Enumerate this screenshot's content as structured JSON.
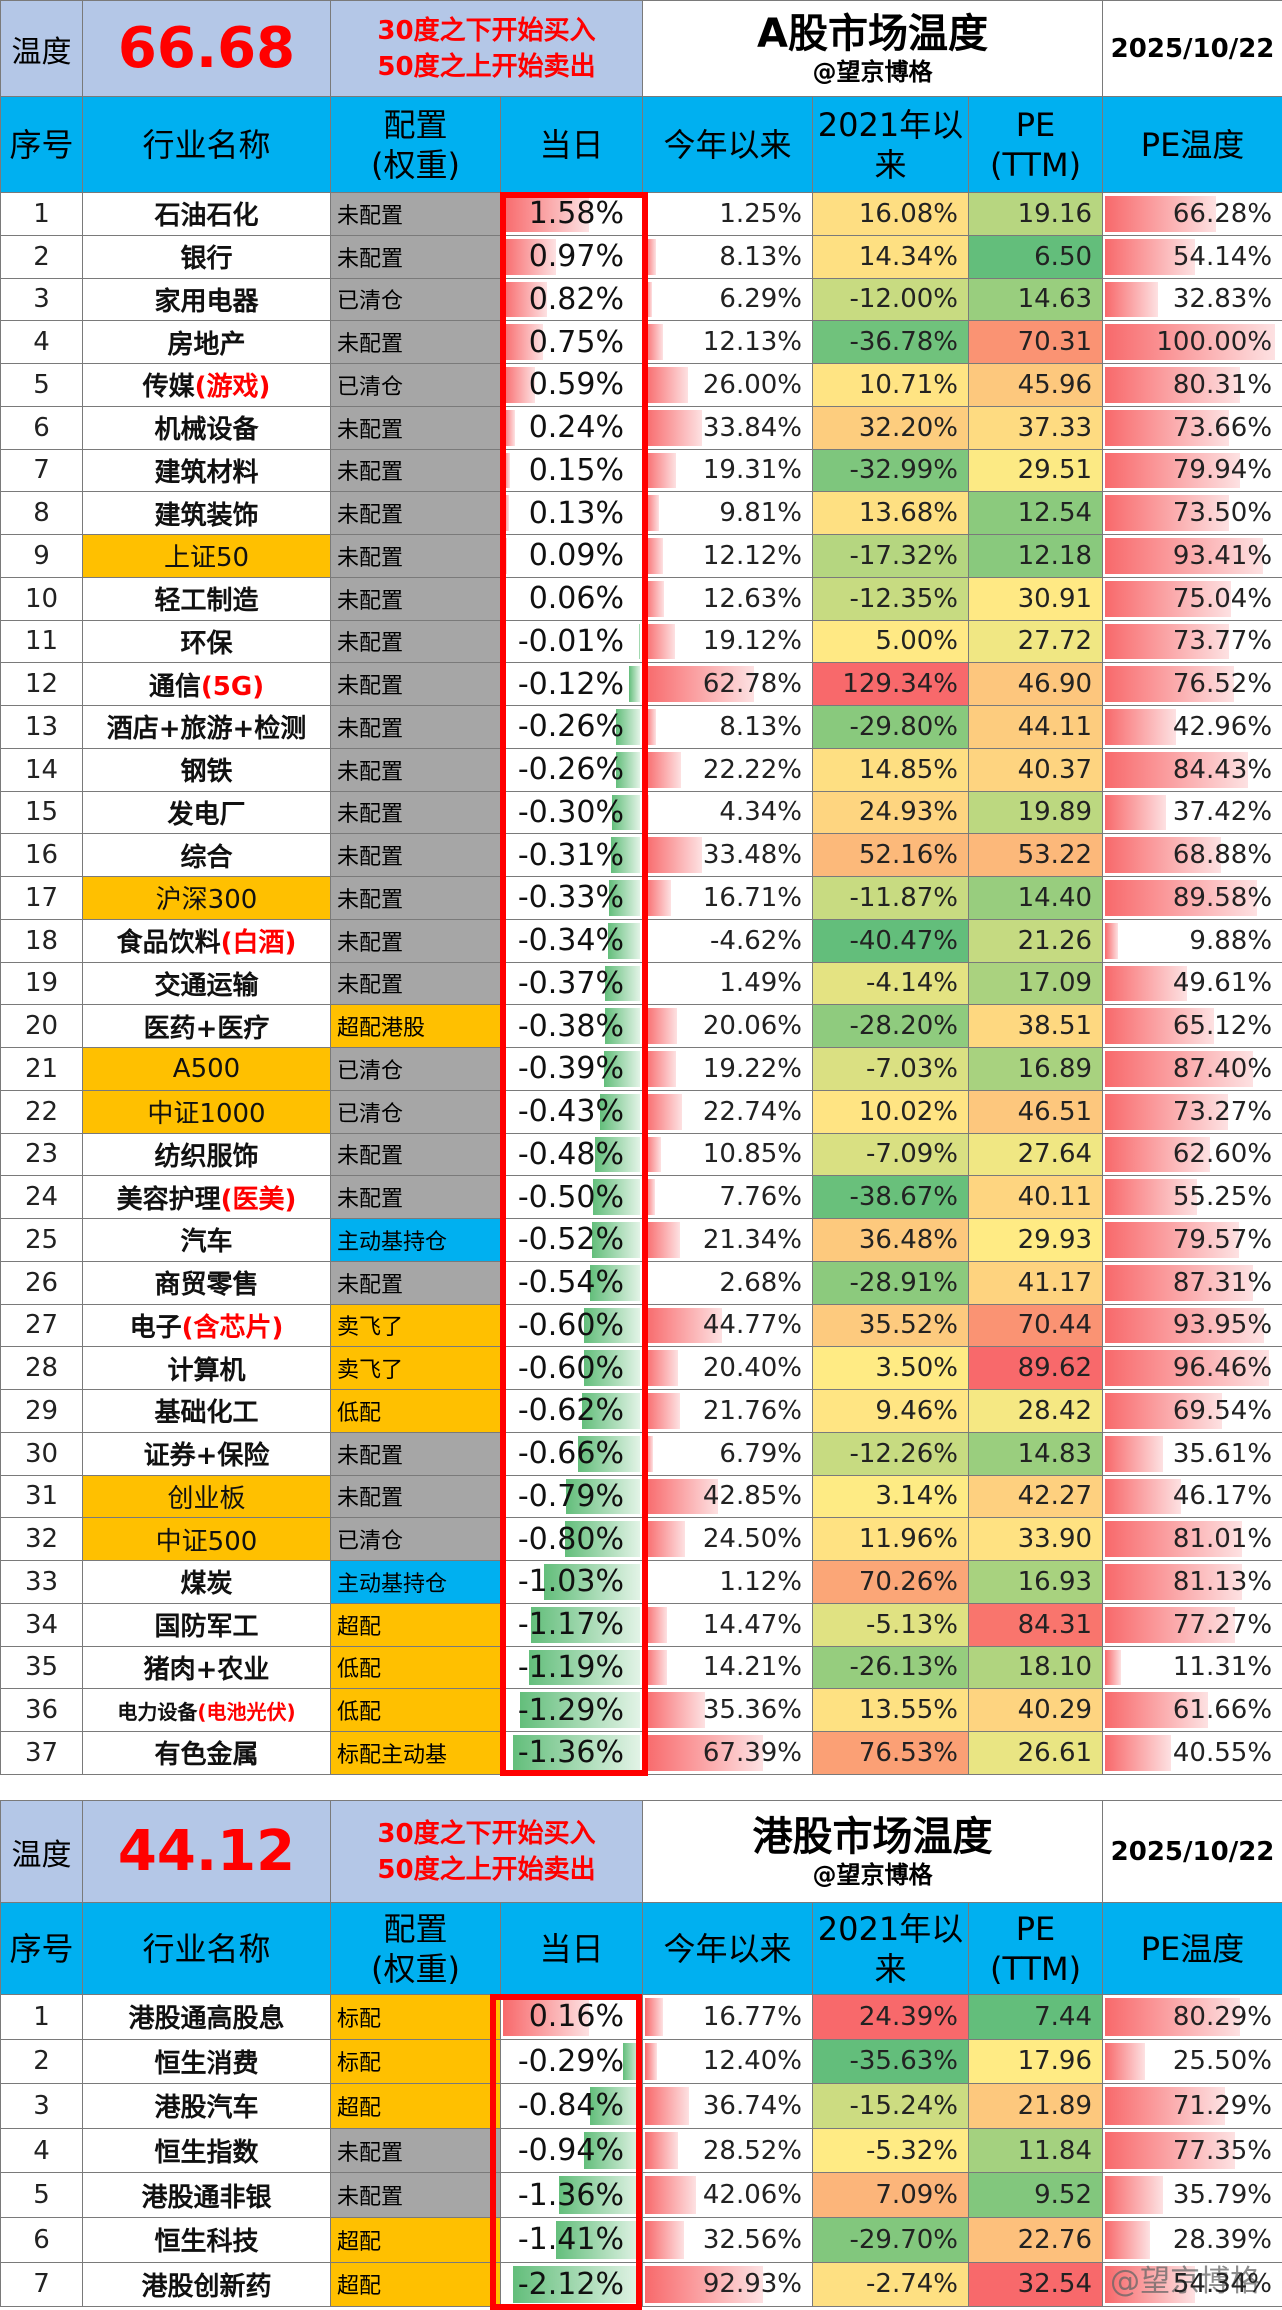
{
  "a_share": {
    "temp_label": "温度",
    "temp_value": "66.68",
    "rule_buy": "30度之下开始买入",
    "rule_sell": "50度之上开始卖出",
    "title": "A股市场温度",
    "subtitle": "@望京博格",
    "date": "2025/10/22",
    "columns": [
      "序号",
      "行业名称",
      "配置\n(权重)",
      "当日",
      "今年以来",
      "2021年以\n来",
      "PE\n(TTM)",
      "PE温度"
    ],
    "rows": [
      {
        "seq": "1",
        "name": "石油石化",
        "alloc": "未配置",
        "ac": "grey",
        "daily": "1.58%",
        "dv": 1.58,
        "ytd": "1.25%",
        "yv": 1.25,
        "since2021": "16.08%",
        "s21": 16.08,
        "pe": "19.16",
        "pev": 19.16,
        "pet": "66.28%",
        "ptv": 66.28
      },
      {
        "seq": "2",
        "name": "银行",
        "alloc": "未配置",
        "ac": "grey",
        "daily": "0.97%",
        "dv": 0.97,
        "ytd": "8.13%",
        "yv": 8.13,
        "since2021": "14.34%",
        "s21": 14.34,
        "pe": "6.50",
        "pev": 6.5,
        "pet": "54.14%",
        "ptv": 54.14
      },
      {
        "seq": "3",
        "name": "家用电器",
        "alloc": "已清仓",
        "ac": "grey",
        "daily": "0.82%",
        "dv": 0.82,
        "ytd": "6.29%",
        "yv": 6.29,
        "since2021": "-12.00%",
        "s21": -12.0,
        "pe": "14.63",
        "pev": 14.63,
        "pet": "32.83%",
        "ptv": 32.83
      },
      {
        "seq": "4",
        "name": "房地产",
        "alloc": "未配置",
        "ac": "grey",
        "daily": "0.75%",
        "dv": 0.75,
        "ytd": "12.13%",
        "yv": 12.13,
        "since2021": "-36.78%",
        "s21": -36.78,
        "pe": "70.31",
        "pev": 70.31,
        "pet": "100.00%",
        "ptv": 100.0
      },
      {
        "seq": "5",
        "name": "传媒",
        "name_red": "(游戏)",
        "alloc": "已清仓",
        "ac": "grey",
        "daily": "0.59%",
        "dv": 0.59,
        "ytd": "26.00%",
        "yv": 26.0,
        "since2021": "10.71%",
        "s21": 10.71,
        "pe": "45.96",
        "pev": 45.96,
        "pet": "80.31%",
        "ptv": 80.31
      },
      {
        "seq": "6",
        "name": "机械设备",
        "alloc": "未配置",
        "ac": "grey",
        "daily": "0.24%",
        "dv": 0.24,
        "ytd": "33.84%",
        "yv": 33.84,
        "since2021": "32.20%",
        "s21": 32.2,
        "pe": "37.33",
        "pev": 37.33,
        "pet": "73.66%",
        "ptv": 73.66
      },
      {
        "seq": "7",
        "name": "建筑材料",
        "alloc": "未配置",
        "ac": "grey",
        "daily": "0.15%",
        "dv": 0.15,
        "ytd": "19.31%",
        "yv": 19.31,
        "since2021": "-32.99%",
        "s21": -32.99,
        "pe": "29.51",
        "pev": 29.51,
        "pet": "79.94%",
        "ptv": 79.94
      },
      {
        "seq": "8",
        "name": "建筑装饰",
        "alloc": "未配置",
        "ac": "grey",
        "daily": "0.13%",
        "dv": 0.13,
        "ytd": "9.81%",
        "yv": 9.81,
        "since2021": "13.68%",
        "s21": 13.68,
        "pe": "12.54",
        "pev": 12.54,
        "pet": "73.50%",
        "ptv": 73.5
      },
      {
        "seq": "9",
        "name": "上证50",
        "idx": true,
        "alloc": "未配置",
        "ac": "grey",
        "daily": "0.09%",
        "dv": 0.09,
        "ytd": "12.12%",
        "yv": 12.12,
        "since2021": "-17.32%",
        "s21": -17.32,
        "pe": "12.18",
        "pev": 12.18,
        "pet": "93.41%",
        "ptv": 93.41
      },
      {
        "seq": "10",
        "name": "轻工制造",
        "alloc": "未配置",
        "ac": "grey",
        "daily": "0.06%",
        "dv": 0.06,
        "ytd": "12.63%",
        "yv": 12.63,
        "since2021": "-12.35%",
        "s21": -12.35,
        "pe": "30.91",
        "pev": 30.91,
        "pet": "75.04%",
        "ptv": 75.04
      },
      {
        "seq": "11",
        "name": "环保",
        "alloc": "未配置",
        "ac": "grey",
        "daily": "-0.01%",
        "dv": -0.01,
        "ytd": "19.12%",
        "yv": 19.12,
        "since2021": "5.00%",
        "s21": 5.0,
        "pe": "27.72",
        "pev": 27.72,
        "pet": "73.77%",
        "ptv": 73.77
      },
      {
        "seq": "12",
        "name": "通信",
        "name_red": "(5G)",
        "alloc": "未配置",
        "ac": "grey",
        "daily": "-0.12%",
        "dv": -0.12,
        "ytd": "62.78%",
        "yv": 62.78,
        "since2021": "129.34%",
        "s21": 129.34,
        "pe": "46.90",
        "pev": 46.9,
        "pet": "76.52%",
        "ptv": 76.52
      },
      {
        "seq": "13",
        "name": "酒店+旅游+检测",
        "alloc": "未配置",
        "ac": "grey",
        "daily": "-0.26%",
        "dv": -0.26,
        "ytd": "8.13%",
        "yv": 8.13,
        "since2021": "-29.80%",
        "s21": -29.8,
        "pe": "44.11",
        "pev": 44.11,
        "pet": "42.96%",
        "ptv": 42.96
      },
      {
        "seq": "14",
        "name": "钢铁",
        "alloc": "未配置",
        "ac": "grey",
        "daily": "-0.26%",
        "dv": -0.26,
        "ytd": "22.22%",
        "yv": 22.22,
        "since2021": "14.85%",
        "s21": 14.85,
        "pe": "40.37",
        "pev": 40.37,
        "pet": "84.43%",
        "ptv": 84.43
      },
      {
        "seq": "15",
        "name": "发电厂",
        "alloc": "未配置",
        "ac": "grey",
        "daily": "-0.30%",
        "dv": -0.3,
        "ytd": "4.34%",
        "yv": 4.34,
        "since2021": "24.93%",
        "s21": 24.93,
        "pe": "19.89",
        "pev": 19.89,
        "pet": "37.42%",
        "ptv": 37.42
      },
      {
        "seq": "16",
        "name": "综合",
        "alloc": "未配置",
        "ac": "grey",
        "daily": "-0.31%",
        "dv": -0.31,
        "ytd": "33.48%",
        "yv": 33.48,
        "since2021": "52.16%",
        "s21": 52.16,
        "pe": "53.22",
        "pev": 53.22,
        "pet": "68.88%",
        "ptv": 68.88
      },
      {
        "seq": "17",
        "name": "沪深300",
        "idx": true,
        "alloc": "未配置",
        "ac": "grey",
        "daily": "-0.33%",
        "dv": -0.33,
        "ytd": "16.71%",
        "yv": 16.71,
        "since2021": "-11.87%",
        "s21": -11.87,
        "pe": "14.40",
        "pev": 14.4,
        "pet": "89.58%",
        "ptv": 89.58
      },
      {
        "seq": "18",
        "name": "食品饮料",
        "name_red": "(白酒)",
        "alloc": "未配置",
        "ac": "grey",
        "daily": "-0.34%",
        "dv": -0.34,
        "ytd": "-4.62%",
        "yv": -4.62,
        "since2021": "-40.47%",
        "s21": -40.47,
        "pe": "21.26",
        "pev": 21.26,
        "pet": "9.88%",
        "ptv": 9.88
      },
      {
        "seq": "19",
        "name": "交通运输",
        "alloc": "未配置",
        "ac": "grey",
        "daily": "-0.37%",
        "dv": -0.37,
        "ytd": "1.49%",
        "yv": 1.49,
        "since2021": "-4.14%",
        "s21": -4.14,
        "pe": "17.09",
        "pev": 17.09,
        "pet": "49.61%",
        "ptv": 49.61
      },
      {
        "seq": "20",
        "name": "医药+医疗",
        "alloc": "超配港股",
        "ac": "gold",
        "daily": "-0.38%",
        "dv": -0.38,
        "ytd": "20.06%",
        "yv": 20.06,
        "since2021": "-28.20%",
        "s21": -28.2,
        "pe": "38.51",
        "pev": 38.51,
        "pet": "65.12%",
        "ptv": 65.12
      },
      {
        "seq": "21",
        "name": "A500",
        "idx": true,
        "alloc": "已清仓",
        "ac": "grey",
        "daily": "-0.39%",
        "dv": -0.39,
        "ytd": "19.22%",
        "yv": 19.22,
        "since2021": "-7.03%",
        "s21": -7.03,
        "pe": "16.89",
        "pev": 16.89,
        "pet": "87.40%",
        "ptv": 87.4
      },
      {
        "seq": "22",
        "name": "中证1000",
        "idx": true,
        "alloc": "已清仓",
        "ac": "grey",
        "daily": "-0.43%",
        "dv": -0.43,
        "ytd": "22.74%",
        "yv": 22.74,
        "since2021": "10.02%",
        "s21": 10.02,
        "pe": "46.51",
        "pev": 46.51,
        "pet": "73.27%",
        "ptv": 73.27
      },
      {
        "seq": "23",
        "name": "纺织服饰",
        "alloc": "未配置",
        "ac": "grey",
        "daily": "-0.48%",
        "dv": -0.48,
        "ytd": "10.85%",
        "yv": 10.85,
        "since2021": "-7.09%",
        "s21": -7.09,
        "pe": "27.64",
        "pev": 27.64,
        "pet": "62.60%",
        "ptv": 62.6
      },
      {
        "seq": "24",
        "name": "美容护理",
        "name_red": "(医美)",
        "alloc": "未配置",
        "ac": "grey",
        "daily": "-0.50%",
        "dv": -0.5,
        "ytd": "7.76%",
        "yv": 7.76,
        "since2021": "-38.67%",
        "s21": -38.67,
        "pe": "40.11",
        "pev": 40.11,
        "pet": "55.25%",
        "ptv": 55.25
      },
      {
        "seq": "25",
        "name": "汽车",
        "alloc": "主动基持仓",
        "ac": "blue",
        "daily": "-0.52%",
        "dv": -0.52,
        "ytd": "21.34%",
        "yv": 21.34,
        "since2021": "36.48%",
        "s21": 36.48,
        "pe": "29.93",
        "pev": 29.93,
        "pet": "79.57%",
        "ptv": 79.57
      },
      {
        "seq": "26",
        "name": "商贸零售",
        "alloc": "未配置",
        "ac": "grey",
        "daily": "-0.54%",
        "dv": -0.54,
        "ytd": "2.68%",
        "yv": 2.68,
        "since2021": "-28.91%",
        "s21": -28.91,
        "pe": "41.17",
        "pev": 41.17,
        "pet": "87.31%",
        "ptv": 87.31
      },
      {
        "seq": "27",
        "name": "电子",
        "name_red": "(含芯片)",
        "alloc": "卖飞了",
        "ac": "gold",
        "daily": "-0.60%",
        "dv": -0.6,
        "ytd": "44.77%",
        "yv": 44.77,
        "since2021": "35.52%",
        "s21": 35.52,
        "pe": "70.44",
        "pev": 70.44,
        "pet": "93.95%",
        "ptv": 93.95
      },
      {
        "seq": "28",
        "name": "计算机",
        "alloc": "卖飞了",
        "ac": "gold",
        "daily": "-0.60%",
        "dv": -0.6,
        "ytd": "20.40%",
        "yv": 20.4,
        "since2021": "3.50%",
        "s21": 3.5,
        "pe": "89.62",
        "pev": 89.62,
        "pet": "96.46%",
        "ptv": 96.46
      },
      {
        "seq": "29",
        "name": "基础化工",
        "alloc": "低配",
        "ac": "gold",
        "daily": "-0.62%",
        "dv": -0.62,
        "ytd": "21.76%",
        "yv": 21.76,
        "since2021": "9.46%",
        "s21": 9.46,
        "pe": "28.42",
        "pev": 28.42,
        "pet": "69.54%",
        "ptv": 69.54
      },
      {
        "seq": "30",
        "name": "证券+保险",
        "alloc": "未配置",
        "ac": "grey",
        "daily": "-0.66%",
        "dv": -0.66,
        "ytd": "6.79%",
        "yv": 6.79,
        "since2021": "-12.26%",
        "s21": -12.26,
        "pe": "14.83",
        "pev": 14.83,
        "pet": "35.61%",
        "ptv": 35.61
      },
      {
        "seq": "31",
        "name": "创业板",
        "idx": true,
        "alloc": "未配置",
        "ac": "grey",
        "daily": "-0.79%",
        "dv": -0.79,
        "ytd": "42.85%",
        "yv": 42.85,
        "since2021": "3.14%",
        "s21": 3.14,
        "pe": "42.27",
        "pev": 42.27,
        "pet": "46.17%",
        "ptv": 46.17
      },
      {
        "seq": "32",
        "name": "中证500",
        "idx": true,
        "alloc": "已清仓",
        "ac": "grey",
        "daily": "-0.80%",
        "dv": -0.8,
        "ytd": "24.50%",
        "yv": 24.5,
        "since2021": "11.96%",
        "s21": 11.96,
        "pe": "33.90",
        "pev": 33.9,
        "pet": "81.01%",
        "ptv": 81.01
      },
      {
        "seq": "33",
        "name": "煤炭",
        "alloc": "主动基持仓",
        "ac": "blue",
        "daily": "-1.03%",
        "dv": -1.03,
        "ytd": "1.12%",
        "yv": 1.12,
        "since2021": "70.26%",
        "s21": 70.26,
        "pe": "16.93",
        "pev": 16.93,
        "pet": "81.13%",
        "ptv": 81.13
      },
      {
        "seq": "34",
        "name": "国防军工",
        "alloc": "超配",
        "ac": "gold",
        "daily": "-1.17%",
        "dv": -1.17,
        "ytd": "14.47%",
        "yv": 14.47,
        "since2021": "-5.13%",
        "s21": -5.13,
        "pe": "84.31",
        "pev": 84.31,
        "pet": "77.27%",
        "ptv": 77.27
      },
      {
        "seq": "35",
        "name": "猪肉+农业",
        "alloc": "低配",
        "ac": "gold",
        "daily": "-1.19%",
        "dv": -1.19,
        "ytd": "14.21%",
        "yv": 14.21,
        "since2021": "-26.13%",
        "s21": -26.13,
        "pe": "18.10",
        "pev": 18.1,
        "pet": "11.31%",
        "ptv": 11.31
      },
      {
        "seq": "36",
        "name": "电力设备",
        "name_red": "(电池光伏)",
        "small": true,
        "alloc": "低配",
        "ac": "gold",
        "daily": "-1.29%",
        "dv": -1.29,
        "ytd": "35.36%",
        "yv": 35.36,
        "since2021": "13.55%",
        "s21": 13.55,
        "pe": "40.29",
        "pev": 40.29,
        "pet": "61.66%",
        "ptv": 61.66
      },
      {
        "seq": "37",
        "name": "有色金属",
        "alloc": "标配主动基",
        "ac": "gold",
        "daily": "-1.36%",
        "dv": -1.36,
        "ytd": "67.39%",
        "yv": 67.39,
        "since2021": "76.53%",
        "s21": 76.53,
        "pe": "26.61",
        "pev": 26.61,
        "pet": "40.55%",
        "ptv": 40.55
      }
    ]
  },
  "hk_share": {
    "temp_label": "温度",
    "temp_value": "44.12",
    "rule_buy": "30度之下开始买入",
    "rule_sell": "50度之上开始卖出",
    "title": "港股市场温度",
    "subtitle": "@望京博格",
    "date": "2025/10/22",
    "columns": [
      "序号",
      "行业名称",
      "配置\n(权重)",
      "当日",
      "今年以来",
      "2021年以\n来",
      "PE\n(TTM)",
      "PE温度"
    ],
    "rows": [
      {
        "seq": "1",
        "name": "港股通高股息",
        "alloc": "标配",
        "ac": "gold",
        "daily": "0.16%",
        "dv": 0.16,
        "ytd": "16.77%",
        "yv": 16.77,
        "since2021": "24.39%",
        "s21": 24.39,
        "pe": "7.44",
        "pev": 7.44,
        "pet": "80.29%",
        "ptv": 80.29
      },
      {
        "seq": "2",
        "name": "恒生消费",
        "alloc": "标配",
        "ac": "gold",
        "daily": "-0.29%",
        "dv": -0.29,
        "ytd": "12.40%",
        "yv": 12.4,
        "since2021": "-35.63%",
        "s21": -35.63,
        "pe": "17.96",
        "pev": 17.96,
        "pet": "25.50%",
        "ptv": 25.5
      },
      {
        "seq": "3",
        "name": "港股汽车",
        "alloc": "超配",
        "ac": "gold",
        "daily": "-0.84%",
        "dv": -0.84,
        "ytd": "36.74%",
        "yv": 36.74,
        "since2021": "-15.24%",
        "s21": -15.24,
        "pe": "21.89",
        "pev": 21.89,
        "pet": "71.29%",
        "ptv": 71.29
      },
      {
        "seq": "4",
        "name": "恒生指数",
        "alloc": "未配置",
        "ac": "grey",
        "daily": "-0.94%",
        "dv": -0.94,
        "ytd": "28.52%",
        "yv": 28.52,
        "since2021": "-5.32%",
        "s21": -5.32,
        "pe": "11.84",
        "pev": 11.84,
        "pet": "77.35%",
        "ptv": 77.35
      },
      {
        "seq": "5",
        "name": "港股通非银",
        "alloc": "未配置",
        "ac": "grey",
        "daily": "-1.36%",
        "dv": -1.36,
        "ytd": "42.06%",
        "yv": 42.06,
        "since2021": "7.09%",
        "s21": 7.09,
        "pe": "9.52",
        "pev": 9.52,
        "pet": "35.79%",
        "ptv": 35.79
      },
      {
        "seq": "6",
        "name": "恒生科技",
        "alloc": "超配",
        "ac": "gold",
        "daily": "-1.41%",
        "dv": -1.41,
        "ytd": "32.56%",
        "yv": 32.56,
        "since2021": "-29.70%",
        "s21": -29.7,
        "pe": "22.76",
        "pev": 22.76,
        "pet": "28.39%",
        "ptv": 28.39
      },
      {
        "seq": "7",
        "name": "港股创新药",
        "alloc": "超配",
        "ac": "gold",
        "daily": "-2.12%",
        "dv": -2.12,
        "ytd": "92.93%",
        "yv": 92.93,
        "since2021": "-2.74%",
        "s21": -2.74,
        "pe": "32.54",
        "pev": 32.54,
        "pet": "54.34%",
        "ptv": 54.34
      }
    ]
  },
  "watermark": "@望京博格",
  "colors": {
    "header_blue": "#00b0f0",
    "temp_bg": "#b4c7e7",
    "alloc_grey": "#a6a6a6",
    "alloc_gold": "#ffc000",
    "alloc_blue": "#00b0f0",
    "accent_red": "#ff0000"
  }
}
